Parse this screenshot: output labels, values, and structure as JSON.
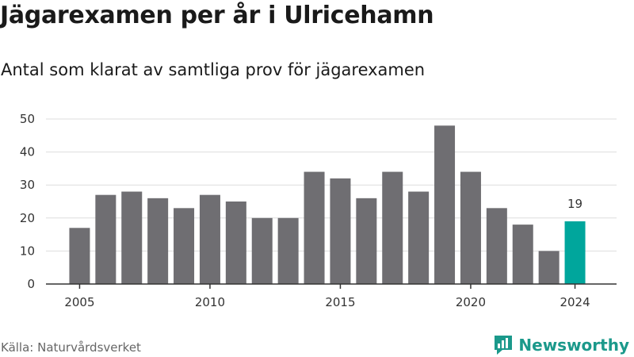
{
  "header": {
    "title": "Jägarexamen per år i Ulricehamn",
    "subtitle": "Antal som klarat av samtliga prov för jägarexamen"
  },
  "footer": {
    "source": "Källa: Naturvårdsverket",
    "brand": "Newsworthy",
    "brand_icon": "newsworthy-logo-icon"
  },
  "colors": {
    "bar": "#6f6e72",
    "highlight": "#00a69c",
    "brand": "#1b998b",
    "grid": "#dddddd",
    "axis": "#333333"
  },
  "chart_data": {
    "type": "bar",
    "x": [
      2005,
      2006,
      2007,
      2008,
      2009,
      2010,
      2011,
      2012,
      2013,
      2014,
      2015,
      2016,
      2017,
      2018,
      2019,
      2020,
      2021,
      2022,
      2023,
      2024
    ],
    "values": [
      17,
      27,
      28,
      26,
      23,
      27,
      25,
      20,
      20,
      34,
      32,
      26,
      34,
      28,
      48,
      34,
      23,
      18,
      10,
      19
    ],
    "x_tick_labels": [
      "2005",
      "2010",
      "2015",
      "2020",
      "2024"
    ],
    "y_ticks": [
      0,
      10,
      20,
      30,
      40,
      50
    ],
    "ylim": [
      0,
      50
    ],
    "xlim": [
      2004.5,
      2024.5
    ],
    "grid": true,
    "highlight": {
      "x": 2024,
      "label": "19"
    },
    "title": "Jägarexamen per år i Ulricehamn",
    "subtitle": "Antal som klarat av samtliga prov för jägarexamen",
    "xlabel": "",
    "ylabel": ""
  }
}
